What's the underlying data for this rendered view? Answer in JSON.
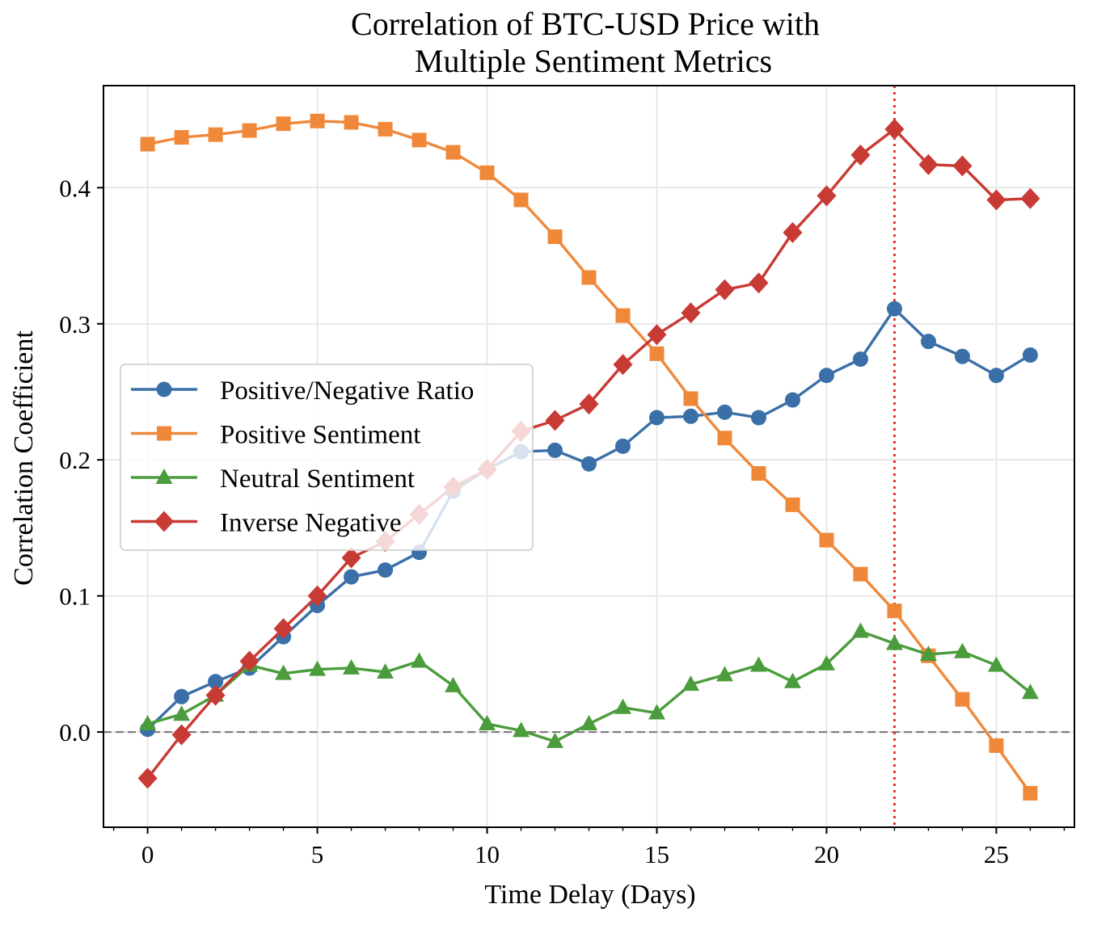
{
  "chart_data": {
    "type": "line",
    "title_lines": [
      "Correlation of BTC-USD Price with",
      "Multiple Sentiment Metrics"
    ],
    "xlabel": "Time Delay (Days)",
    "ylabel": "Correlation Coefficient",
    "xlim": [
      -1.3,
      27.3
    ],
    "ylim": [
      -0.07,
      0.475
    ],
    "xticks": [
      0,
      5,
      10,
      15,
      20,
      25
    ],
    "xtick_labels": [
      "0",
      "5",
      "10",
      "15",
      "20",
      "25"
    ],
    "yticks": [
      0.0,
      0.1,
      0.2,
      0.3,
      0.4
    ],
    "ytick_labels": [
      "0.0",
      "0.1",
      "0.2",
      "0.3",
      "0.4"
    ],
    "grid": true,
    "legend_position": "center-left",
    "reference_lines": [
      {
        "orientation": "horizontal",
        "value": 0.0,
        "style": "dashed",
        "color": "#808080"
      },
      {
        "orientation": "vertical",
        "value": 22,
        "style": "dotted",
        "color": "#e8322b"
      }
    ],
    "x": [
      0,
      1,
      2,
      3,
      4,
      5,
      6,
      7,
      8,
      9,
      10,
      11,
      12,
      13,
      14,
      15,
      16,
      17,
      18,
      19,
      20,
      21,
      22,
      23,
      24,
      25,
      26
    ],
    "series": [
      {
        "name": "Positive/Negative Ratio",
        "color": "#3a6fa8",
        "marker": "circle",
        "values": [
          0.002,
          0.026,
          0.037,
          0.047,
          0.07,
          0.093,
          0.114,
          0.119,
          0.132,
          0.177,
          0.193,
          0.206,
          0.207,
          0.197,
          0.21,
          0.231,
          0.232,
          0.235,
          0.231,
          0.244,
          0.262,
          0.274,
          0.311,
          0.287,
          0.276,
          0.262,
          0.277
        ]
      },
      {
        "name": "Positive Sentiment",
        "color": "#f0883a",
        "marker": "square",
        "values": [
          0.432,
          0.437,
          0.439,
          0.442,
          0.447,
          0.449,
          0.448,
          0.443,
          0.435,
          0.426,
          0.411,
          0.391,
          0.364,
          0.334,
          0.306,
          0.278,
          0.245,
          0.216,
          0.19,
          0.167,
          0.141,
          0.116,
          0.089,
          0.056,
          0.024,
          -0.01,
          -0.045
        ]
      },
      {
        "name": "Neutral Sentiment",
        "color": "#4b9c3c",
        "marker": "triangle",
        "values": [
          0.006,
          0.013,
          0.027,
          0.049,
          0.043,
          0.046,
          0.047,
          0.044,
          0.052,
          0.034,
          0.006,
          0.001,
          -0.007,
          0.006,
          0.018,
          0.014,
          0.035,
          0.042,
          0.049,
          0.037,
          0.05,
          0.074,
          0.065,
          0.057,
          0.059,
          0.049,
          0.029
        ]
      },
      {
        "name": "Inverse Negative",
        "color": "#c83a34",
        "marker": "diamond",
        "values": [
          -0.034,
          -0.002,
          0.027,
          0.052,
          0.076,
          0.1,
          0.128,
          0.14,
          0.16,
          0.18,
          0.193,
          0.221,
          0.229,
          0.241,
          0.27,
          0.292,
          0.308,
          0.325,
          0.33,
          0.367,
          0.394,
          0.424,
          0.443,
          0.417,
          0.416,
          0.391,
          0.392
        ]
      }
    ]
  }
}
